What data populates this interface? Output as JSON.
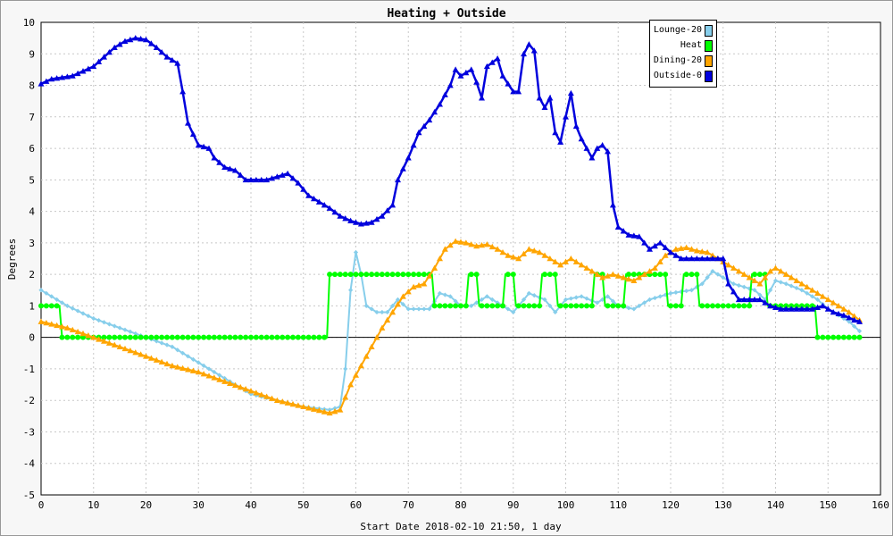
{
  "chart_data": {
    "type": "line",
    "title": "Heating + Outside",
    "xlabel": "Start Date 2018-02-10 21:50, 1 day",
    "ylabel": "Degrees",
    "xlim": [
      0,
      160
    ],
    "ylim": [
      -5,
      10
    ],
    "xticks": [
      0,
      10,
      20,
      30,
      40,
      50,
      60,
      70,
      80,
      90,
      100,
      110,
      120,
      130,
      140,
      150,
      160
    ],
    "yticks": [
      -5,
      -4,
      -3,
      -2,
      -1,
      0,
      1,
      2,
      3,
      4,
      5,
      6,
      7,
      8,
      9,
      10
    ],
    "grid": true,
    "legend_position": "top-right",
    "series": [
      {
        "name": "Lounge-20",
        "color": "#87ceeb",
        "marker": "diamond",
        "points": [
          [
            0,
            1.5
          ],
          [
            5,
            1.0
          ],
          [
            10,
            0.6
          ],
          [
            15,
            0.3
          ],
          [
            20,
            0.0
          ],
          [
            25,
            -0.3
          ],
          [
            30,
            -0.8
          ],
          [
            35,
            -1.3
          ],
          [
            40,
            -1.8
          ],
          [
            45,
            -2.0
          ],
          [
            50,
            -2.2
          ],
          [
            55,
            -2.3
          ],
          [
            57,
            -2.2
          ],
          [
            58,
            -1.0
          ],
          [
            59,
            1.5
          ],
          [
            60,
            2.7
          ],
          [
            61,
            2.0
          ],
          [
            62,
            1.0
          ],
          [
            64,
            0.8
          ],
          [
            66,
            0.8
          ],
          [
            68,
            1.2
          ],
          [
            70,
            0.9
          ],
          [
            72,
            0.9
          ],
          [
            74,
            0.9
          ],
          [
            76,
            1.4
          ],
          [
            78,
            1.3
          ],
          [
            80,
            1.0
          ],
          [
            82,
            1.0
          ],
          [
            85,
            1.3
          ],
          [
            88,
            1.0
          ],
          [
            90,
            0.8
          ],
          [
            93,
            1.4
          ],
          [
            96,
            1.2
          ],
          [
            98,
            0.8
          ],
          [
            100,
            1.2
          ],
          [
            103,
            1.3
          ],
          [
            106,
            1.1
          ],
          [
            108,
            1.3
          ],
          [
            110,
            1.0
          ],
          [
            113,
            0.9
          ],
          [
            116,
            1.2
          ],
          [
            120,
            1.4
          ],
          [
            124,
            1.5
          ],
          [
            126,
            1.7
          ],
          [
            128,
            2.1
          ],
          [
            130,
            1.9
          ],
          [
            132,
            1.7
          ],
          [
            134,
            1.6
          ],
          [
            136,
            1.5
          ],
          [
            138,
            1.2
          ],
          [
            140,
            1.8
          ],
          [
            142,
            1.7
          ],
          [
            145,
            1.5
          ],
          [
            148,
            1.2
          ],
          [
            150,
            0.9
          ],
          [
            154,
            0.5
          ],
          [
            156,
            0.2
          ]
        ]
      },
      {
        "name": "Heat",
        "color": "#00ff00",
        "marker": "circle",
        "points": [
          [
            0,
            1
          ],
          [
            3.5,
            1
          ],
          [
            4,
            0
          ],
          [
            54.5,
            0
          ],
          [
            55,
            2
          ],
          [
            74.5,
            2
          ],
          [
            75,
            1
          ],
          [
            81,
            1
          ],
          [
            81.5,
            2
          ],
          [
            83,
            2
          ],
          [
            83.5,
            1
          ],
          [
            88,
            1
          ],
          [
            88.5,
            2
          ],
          [
            90,
            2
          ],
          [
            90.5,
            1
          ],
          [
            95,
            1
          ],
          [
            95.5,
            2
          ],
          [
            98,
            2
          ],
          [
            98.5,
            1
          ],
          [
            105,
            1
          ],
          [
            105.5,
            2
          ],
          [
            107,
            2
          ],
          [
            107.5,
            1
          ],
          [
            111,
            1
          ],
          [
            111.5,
            2
          ],
          [
            119,
            2
          ],
          [
            119.5,
            1
          ],
          [
            122,
            1
          ],
          [
            122.5,
            2
          ],
          [
            125,
            2
          ],
          [
            125.5,
            1
          ],
          [
            135,
            1
          ],
          [
            135.5,
            2
          ],
          [
            138,
            2
          ],
          [
            138.5,
            1
          ],
          [
            147.5,
            1
          ],
          [
            148,
            0
          ],
          [
            156,
            0
          ]
        ]
      },
      {
        "name": "Dining-20",
        "color": "#ffa500",
        "marker": "triangle",
        "points": [
          [
            0,
            0.5
          ],
          [
            5,
            0.3
          ],
          [
            10,
            0.0
          ],
          [
            15,
            -0.3
          ],
          [
            20,
            -0.6
          ],
          [
            25,
            -0.9
          ],
          [
            30,
            -1.1
          ],
          [
            35,
            -1.4
          ],
          [
            40,
            -1.7
          ],
          [
            45,
            -2.0
          ],
          [
            50,
            -2.2
          ],
          [
            55,
            -2.4
          ],
          [
            57,
            -2.3
          ],
          [
            59,
            -1.5
          ],
          [
            61,
            -0.9
          ],
          [
            63,
            -0.3
          ],
          [
            65,
            0.3
          ],
          [
            67,
            0.8
          ],
          [
            69,
            1.3
          ],
          [
            71,
            1.6
          ],
          [
            73,
            1.7
          ],
          [
            75,
            2.2
          ],
          [
            77,
            2.8
          ],
          [
            79,
            3.05
          ],
          [
            81,
            3.0
          ],
          [
            83,
            2.9
          ],
          [
            85,
            2.95
          ],
          [
            87,
            2.8
          ],
          [
            89,
            2.6
          ],
          [
            91,
            2.5
          ],
          [
            93,
            2.8
          ],
          [
            95,
            2.7
          ],
          [
            97,
            2.5
          ],
          [
            99,
            2.3
          ],
          [
            101,
            2.5
          ],
          [
            103,
            2.3
          ],
          [
            105,
            2.1
          ],
          [
            107,
            1.9
          ],
          [
            109,
            2.0
          ],
          [
            111,
            1.9
          ],
          [
            113,
            1.8
          ],
          [
            115,
            2.0
          ],
          [
            117,
            2.2
          ],
          [
            119,
            2.6
          ],
          [
            121,
            2.8
          ],
          [
            123,
            2.85
          ],
          [
            125,
            2.75
          ],
          [
            127,
            2.7
          ],
          [
            129,
            2.5
          ],
          [
            131,
            2.3
          ],
          [
            133,
            2.1
          ],
          [
            135,
            1.9
          ],
          [
            137,
            1.7
          ],
          [
            139,
            2.1
          ],
          [
            140,
            2.2
          ],
          [
            142,
            2.0
          ],
          [
            145,
            1.7
          ],
          [
            148,
            1.4
          ],
          [
            151,
            1.1
          ],
          [
            154,
            0.8
          ],
          [
            156,
            0.55
          ]
        ]
      },
      {
        "name": "Outside-0",
        "color": "#0000dd",
        "marker": "triangle",
        "points": [
          [
            0,
            8.05
          ],
          [
            2,
            8.2
          ],
          [
            4,
            8.25
          ],
          [
            6,
            8.3
          ],
          [
            8,
            8.45
          ],
          [
            10,
            8.6
          ],
          [
            12,
            8.9
          ],
          [
            14,
            9.2
          ],
          [
            16,
            9.4
          ],
          [
            18,
            9.5
          ],
          [
            20,
            9.45
          ],
          [
            22,
            9.2
          ],
          [
            24,
            8.9
          ],
          [
            26,
            8.7
          ],
          [
            27,
            7.8
          ],
          [
            28,
            6.8
          ],
          [
            30,
            6.1
          ],
          [
            32,
            6.0
          ],
          [
            33,
            5.7
          ],
          [
            35,
            5.4
          ],
          [
            37,
            5.3
          ],
          [
            39,
            5.0
          ],
          [
            41,
            5.0
          ],
          [
            43,
            5.0
          ],
          [
            45,
            5.1
          ],
          [
            47,
            5.2
          ],
          [
            49,
            4.9
          ],
          [
            51,
            4.5
          ],
          [
            53,
            4.3
          ],
          [
            55,
            4.1
          ],
          [
            57,
            3.85
          ],
          [
            59,
            3.7
          ],
          [
            61,
            3.6
          ],
          [
            63,
            3.65
          ],
          [
            65,
            3.85
          ],
          [
            67,
            4.2
          ],
          [
            68,
            5.0
          ],
          [
            70,
            5.7
          ],
          [
            72,
            6.5
          ],
          [
            74,
            6.9
          ],
          [
            76,
            7.4
          ],
          [
            78,
            8.0
          ],
          [
            79,
            8.5
          ],
          [
            80,
            8.3
          ],
          [
            82,
            8.5
          ],
          [
            83,
            8.1
          ],
          [
            84,
            7.6
          ],
          [
            85,
            8.6
          ],
          [
            87,
            8.85
          ],
          [
            88,
            8.3
          ],
          [
            90,
            7.8
          ],
          [
            91,
            7.8
          ],
          [
            92,
            9.0
          ],
          [
            93,
            9.3
          ],
          [
            94,
            9.1
          ],
          [
            95,
            7.6
          ],
          [
            96,
            7.3
          ],
          [
            97,
            7.6
          ],
          [
            98,
            6.5
          ],
          [
            99,
            6.2
          ],
          [
            100,
            7.0
          ],
          [
            101,
            7.75
          ],
          [
            102,
            6.7
          ],
          [
            103,
            6.3
          ],
          [
            105,
            5.7
          ],
          [
            106,
            6.0
          ],
          [
            107,
            6.1
          ],
          [
            108,
            5.9
          ],
          [
            109,
            4.2
          ],
          [
            110,
            3.5
          ],
          [
            112,
            3.25
          ],
          [
            114,
            3.2
          ],
          [
            116,
            2.8
          ],
          [
            118,
            3.0
          ],
          [
            120,
            2.7
          ],
          [
            122,
            2.5
          ],
          [
            124,
            2.5
          ],
          [
            126,
            2.5
          ],
          [
            128,
            2.5
          ],
          [
            130,
            2.5
          ],
          [
            131,
            1.7
          ],
          [
            133,
            1.2
          ],
          [
            135,
            1.2
          ],
          [
            137,
            1.2
          ],
          [
            139,
            1.0
          ],
          [
            141,
            0.9
          ],
          [
            143,
            0.9
          ],
          [
            145,
            0.9
          ],
          [
            147,
            0.9
          ],
          [
            149,
            1.0
          ],
          [
            151,
            0.8
          ],
          [
            153,
            0.7
          ],
          [
            155,
            0.55
          ],
          [
            156,
            0.5
          ]
        ]
      }
    ]
  },
  "legend": {
    "items": [
      {
        "label": "Lounge-20",
        "color": "#87ceeb"
      },
      {
        "label": "Heat",
        "color": "#00ff00"
      },
      {
        "label": "Dining-20",
        "color": "#ffa500"
      },
      {
        "label": "Outside-0",
        "color": "#0000dd"
      }
    ]
  }
}
